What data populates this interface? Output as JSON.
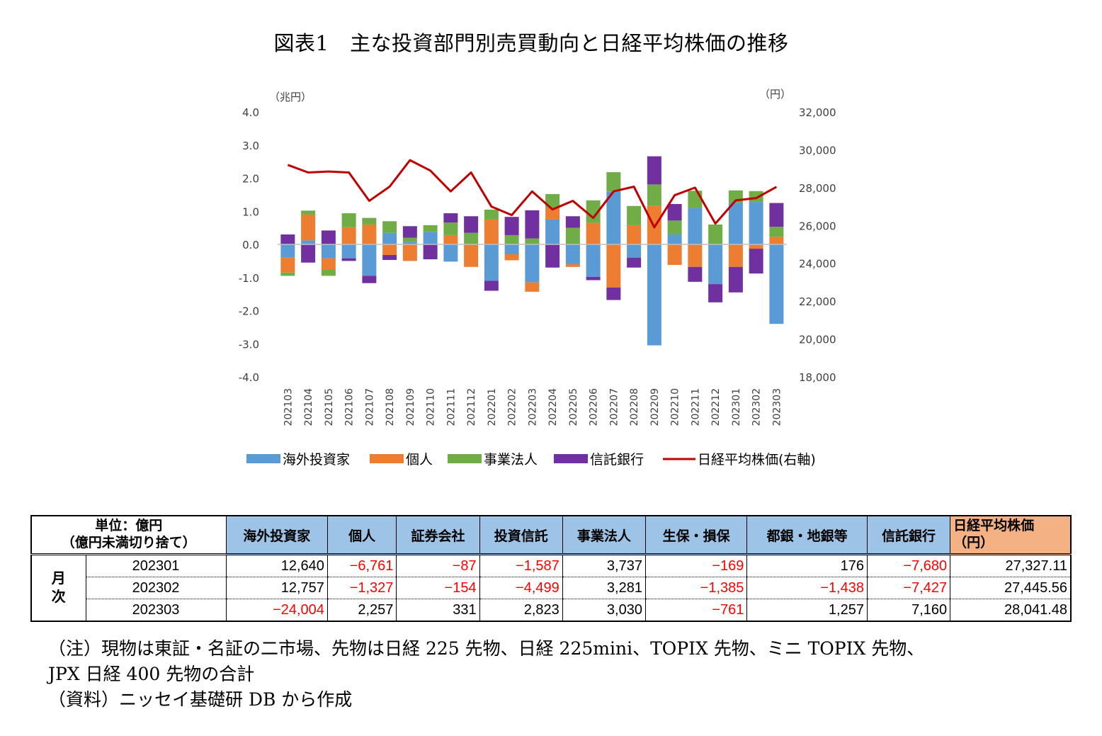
{
  "title": "図表1　主な投資部門別売買動向と日経平均株価の推移",
  "chart_data": {
    "type": "bar",
    "stacked": true,
    "left_unit": "（兆円）",
    "right_unit": "（円）",
    "categories": [
      "202103",
      "202104",
      "202105",
      "202106",
      "202107",
      "202108",
      "202109",
      "202110",
      "202111",
      "202112",
      "202201",
      "202202",
      "202203",
      "202204",
      "202205",
      "202206",
      "202207",
      "202208",
      "202209",
      "202210",
      "202211",
      "202212",
      "202301",
      "202302",
      "202303"
    ],
    "y_left": {
      "range": [
        -4.0,
        4.0
      ],
      "ticks": [
        "4.0",
        "3.0",
        "2.0",
        "1.0",
        "0.0",
        "-1.0",
        "-2.0",
        "-3.0",
        "-4.0"
      ]
    },
    "y_right": {
      "range": [
        18000,
        32000
      ],
      "ticks": [
        "32,000",
        "30,000",
        "28,000",
        "26,000",
        "24,000",
        "22,000",
        "20,000",
        "18,000"
      ]
    },
    "series": [
      {
        "name": "海外投資家",
        "color": "#5b9bd5",
        "values": [
          -0.4,
          0.12,
          -0.42,
          -0.42,
          -0.95,
          0.35,
          0.08,
          0.38,
          -0.52,
          0.0,
          -1.1,
          -0.3,
          -1.15,
          0.75,
          -0.6,
          -0.98,
          1.6,
          -0.4,
          -3.05,
          0.3,
          1.1,
          -1.2,
          1.26,
          1.28,
          -2.4
        ]
      },
      {
        "name": "個人",
        "color": "#ed7d31",
        "values": [
          -0.45,
          0.78,
          -0.35,
          0.52,
          0.6,
          -0.32,
          -0.5,
          0.0,
          0.28,
          -0.68,
          0.75,
          -0.18,
          -0.28,
          0.35,
          -0.08,
          0.65,
          -1.3,
          0.58,
          1.16,
          -0.62,
          -0.68,
          0.0,
          -0.68,
          -0.13,
          0.23
        ]
      },
      {
        "name": "事業法人",
        "color": "#70ad47",
        "values": [
          -0.1,
          0.12,
          -0.18,
          0.42,
          0.2,
          0.35,
          0.12,
          0.2,
          0.38,
          0.35,
          0.3,
          0.28,
          0.18,
          0.42,
          0.5,
          0.68,
          0.58,
          0.58,
          0.65,
          0.42,
          0.52,
          0.6,
          0.37,
          0.33,
          0.3
        ]
      },
      {
        "name": "信託銀行",
        "color": "#7030a0",
        "values": [
          0.3,
          -0.55,
          0.42,
          -0.08,
          -0.22,
          -0.15,
          0.35,
          -0.45,
          0.28,
          0.5,
          -0.3,
          0.55,
          0.85,
          -0.7,
          0.35,
          -0.1,
          -0.38,
          -0.3,
          0.85,
          0.5,
          -0.45,
          -0.55,
          -0.77,
          -0.75,
          0.72
        ]
      }
    ],
    "line": {
      "name": "日経平均株価(右軸)",
      "color": "#c00000",
      "values": [
        29200,
        28800,
        28850,
        28800,
        27300,
        28050,
        29450,
        28900,
        27800,
        28800,
        27000,
        26550,
        27800,
        26850,
        27300,
        26400,
        27800,
        28050,
        25900,
        27600,
        28000,
        26100,
        27327,
        27446,
        28041
      ]
    }
  },
  "table": {
    "unit_label": "単位：億円",
    "unit_note": "（億円未満切り捨て）",
    "headers": [
      "海外投資家",
      "個人",
      "証券会社",
      "投資信託",
      "事業法人",
      "生保・損保",
      "都銀・地銀等",
      "信託銀行"
    ],
    "nikkei_header": "日経平均株価",
    "nikkei_unit": "（円）",
    "group_label": "月\n次",
    "rows": [
      {
        "month": "202301",
        "values": [
          "12,640",
          "−6,761",
          "−87",
          "−1,587",
          "3,737",
          "−169",
          "176",
          "−7,680",
          "27,327.11"
        ]
      },
      {
        "month": "202302",
        "values": [
          "12,757",
          "−1,327",
          "−154",
          "−4,499",
          "3,281",
          "−1,385",
          "−1,438",
          "−7,427",
          "27,445.56"
        ]
      },
      {
        "month": "202303",
        "values": [
          "−24,004",
          "2,257",
          "331",
          "2,823",
          "3,030",
          "−761",
          "1,257",
          "7,160",
          "28,041.48"
        ]
      }
    ]
  },
  "notes": [
    "（注）現物は東証・名証の二市場、先物は日経 225 先物、日経 225mini、TOPIX 先物、ミニ TOPIX 先物、",
    "JPX 日経 400 先物の合計",
    "（資料）ニッセイ基礎研 DB から作成"
  ]
}
